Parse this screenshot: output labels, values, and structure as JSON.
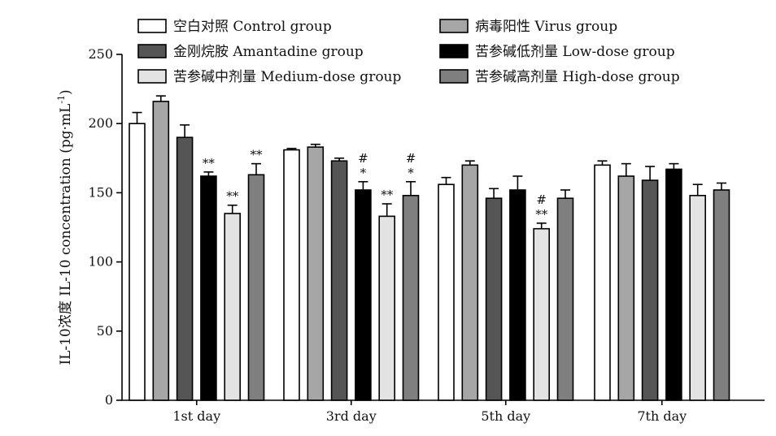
{
  "chart_data": {
    "type": "bar",
    "title": "",
    "xlabel": "",
    "ylabel": "IL-10浓度 IL-10 concentration (pg·mL",
    "ylabel_superscript": "-1",
    "ylabel_suffix": ")",
    "ylim": [
      0,
      250
    ],
    "yticks": [
      0,
      50,
      100,
      150,
      200,
      250
    ],
    "categories": [
      "1st day",
      "3rd day",
      "5th day",
      "7th day"
    ],
    "legend_position": "top",
    "series": [
      {
        "name": "空白对照 Control group",
        "color": "#ffffff",
        "values": [
          200,
          181,
          156,
          170
        ],
        "errors": [
          8,
          1,
          5,
          3
        ],
        "annotations": [
          "",
          "",
          "",
          ""
        ]
      },
      {
        "name": "病毒阳性 Virus group",
        "color": "#a6a6a6",
        "values": [
          216,
          183,
          170,
          162
        ],
        "errors": [
          4,
          2,
          3,
          9
        ],
        "annotations": [
          "",
          "",
          "",
          ""
        ]
      },
      {
        "name": "金刚烷胺 Amantadine group",
        "color": "#555555",
        "values": [
          190,
          173,
          146,
          159
        ],
        "errors": [
          9,
          2,
          7,
          10
        ],
        "annotations": [
          "",
          "",
          "",
          ""
        ]
      },
      {
        "name": "苦参碱低剂量 Low-dose group",
        "color": "#000000",
        "values": [
          162,
          152,
          152,
          167
        ],
        "errors": [
          3,
          6,
          10,
          4
        ],
        "annotations": [
          "**",
          "#\n*",
          "",
          ""
        ]
      },
      {
        "name": "苦参碱中剂量 Medium-dose group",
        "color": "#e3e3e3",
        "values": [
          135,
          133,
          124,
          148
        ],
        "errors": [
          6,
          9,
          4,
          8
        ],
        "annotations": [
          "**",
          "**",
          "#\n**",
          ""
        ]
      },
      {
        "name": "苦参碱高剂量 High-dose group",
        "color": "#7f7f7f",
        "values": [
          163,
          148,
          146,
          152
        ],
        "errors": [
          8,
          10,
          6,
          5
        ],
        "annotations": [
          "**",
          "#\n*",
          "",
          ""
        ]
      }
    ]
  }
}
